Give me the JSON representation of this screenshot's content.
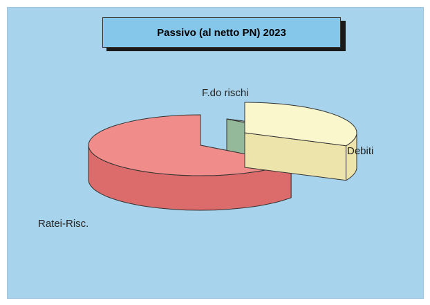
{
  "colors": {
    "background": "#a7d4ec",
    "title_box": "#84c7ea",
    "debiti_top": "#fbf7cc",
    "debiti_side": "#ece4aa",
    "fondo_top": "#c9f0d0",
    "fondo_side": "#93b99a",
    "ratei_top": "#f08c8a",
    "ratei_side": "#dc6c6b",
    "edge": "#333333"
  },
  "chart_data": {
    "type": "pie",
    "title": "Passivo (al netto PN) 2023",
    "categories": [
      "Debiti",
      "F.do rischi",
      "Ratei-Risc."
    ],
    "values": [
      32,
      3,
      65
    ],
    "exploded": true,
    "three_d": true,
    "labels_outside": true,
    "legend": "none"
  }
}
